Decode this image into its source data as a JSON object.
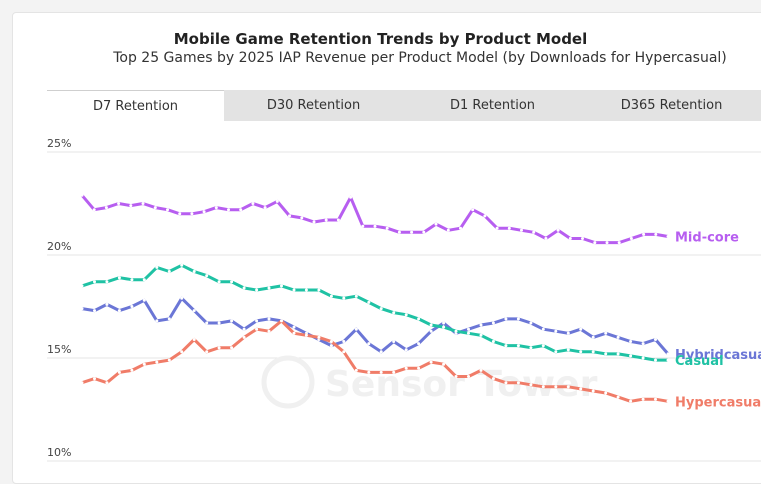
{
  "chart_data": {
    "type": "line",
    "title": "Mobile Game Retention Trends by Product Model",
    "subtitle": "Top 25 Games by 2025 IAP Revenue per Product Model (by Downloads for Hypercasual)",
    "tabs": [
      {
        "label": "D7 Retention",
        "active": true
      },
      {
        "label": "D30 Retention",
        "active": false
      },
      {
        "label": "D1 Retention",
        "active": false
      },
      {
        "label": "D365 Retention",
        "active": false
      }
    ],
    "ylim": [
      10,
      25
    ],
    "yticks": [
      "10%",
      "15%",
      "20%",
      "25%"
    ],
    "grid": true,
    "watermark": "Sensor Tower",
    "series": [
      {
        "name": "Mid-core",
        "color": "#b75ef0",
        "values": [
          22.9,
          22.2,
          22.3,
          22.5,
          22.4,
          22.5,
          22.3,
          22.2,
          22.0,
          22.0,
          22.1,
          22.3,
          22.2,
          22.2,
          22.5,
          22.3,
          22.6,
          21.9,
          21.8,
          21.6,
          21.7,
          21.7,
          22.8,
          21.4,
          21.4,
          21.3,
          21.1,
          21.1,
          21.1,
          21.5,
          21.2,
          21.3,
          22.2,
          21.9,
          21.3,
          21.3,
          21.2,
          21.1,
          20.8,
          21.2,
          20.8,
          20.8,
          20.6,
          20.6,
          20.6,
          20.8,
          21.0,
          21.0,
          20.9
        ]
      },
      {
        "name": "Hybridcasual",
        "color": "#6b76d6",
        "values": [
          17.4,
          17.3,
          17.6,
          17.3,
          17.5,
          17.8,
          16.8,
          16.9,
          17.9,
          17.3,
          16.7,
          16.7,
          16.8,
          16.4,
          16.8,
          16.9,
          16.8,
          16.5,
          16.2,
          15.9,
          15.6,
          15.8,
          16.4,
          15.7,
          15.3,
          15.8,
          15.4,
          15.7,
          16.3,
          16.7,
          16.2,
          16.4,
          16.6,
          16.7,
          16.9,
          16.9,
          16.7,
          16.4,
          16.3,
          16.2,
          16.4,
          16.0,
          16.2,
          16.0,
          15.8,
          15.7,
          15.9,
          15.2
        ]
      },
      {
        "name": "Casual",
        "color": "#1fc2a4",
        "values": [
          18.5,
          18.7,
          18.7,
          18.9,
          18.8,
          18.8,
          19.4,
          19.2,
          19.5,
          19.2,
          19.0,
          18.7,
          18.7,
          18.4,
          18.3,
          18.4,
          18.5,
          18.3,
          18.3,
          18.3,
          18.0,
          17.9,
          18.0,
          17.7,
          17.4,
          17.2,
          17.1,
          16.9,
          16.6,
          16.5,
          16.3,
          16.2,
          16.1,
          15.8,
          15.6,
          15.6,
          15.5,
          15.6,
          15.3,
          15.4,
          15.3,
          15.3,
          15.2,
          15.2,
          15.1,
          15.0,
          14.9,
          14.9
        ]
      },
      {
        "name": "Hypercasual",
        "color": "#f07c68",
        "values": [
          13.8,
          14.0,
          13.8,
          14.3,
          14.4,
          14.7,
          14.8,
          14.9,
          15.3,
          15.9,
          15.3,
          15.5,
          15.5,
          16.0,
          16.4,
          16.3,
          16.8,
          16.2,
          16.1,
          16.0,
          15.8,
          15.3,
          14.4,
          14.3,
          14.3,
          14.3,
          14.5,
          14.5,
          14.8,
          14.7,
          14.1,
          14.1,
          14.4,
          14.0,
          13.8,
          13.8,
          13.7,
          13.6,
          13.6,
          13.6,
          13.5,
          13.4,
          13.3,
          13.1,
          12.9,
          13.0,
          13.0,
          12.9
        ]
      }
    ]
  }
}
